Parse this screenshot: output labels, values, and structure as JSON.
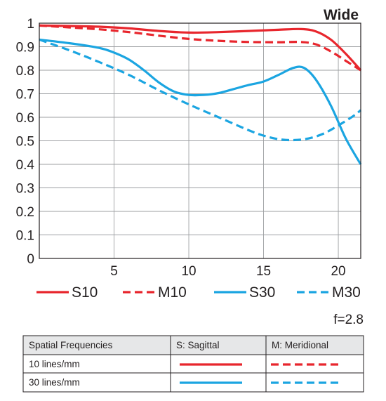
{
  "chart_data": {
    "type": "line",
    "title": "Wide",
    "xlabel": "",
    "ylabel": "",
    "xlim": [
      0,
      21.5
    ],
    "ylim": [
      0,
      1
    ],
    "x_ticks": [
      5,
      10,
      15,
      20
    ],
    "y_ticks": [
      0,
      0.1,
      0.2,
      0.3,
      0.4,
      0.5,
      0.6,
      0.7,
      0.8,
      0.9,
      1
    ],
    "y_tick_labels": [
      "0",
      "0.1",
      "0.2",
      "0.3",
      "0.4",
      "0.5",
      "0.6",
      "0.7",
      "0.8",
      "0.9",
      "1"
    ],
    "grid": true,
    "legend_position": "bottom",
    "series": [
      {
        "name": "S10",
        "color": "#e8262d",
        "dashed": false,
        "x": [
          0,
          2,
          4,
          6,
          8,
          10,
          12,
          14,
          16,
          17.5,
          18.5,
          19.5,
          20.5,
          21.5
        ],
        "y": [
          0.99,
          0.988,
          0.985,
          0.978,
          0.967,
          0.96,
          0.962,
          0.967,
          0.972,
          0.975,
          0.965,
          0.93,
          0.87,
          0.8
        ]
      },
      {
        "name": "M10",
        "color": "#e8262d",
        "dashed": true,
        "x": [
          0,
          2,
          4,
          6,
          8,
          10,
          12,
          14,
          16,
          17.5,
          18.5,
          19.5,
          20.5,
          21.5
        ],
        "y": [
          0.99,
          0.982,
          0.974,
          0.962,
          0.947,
          0.933,
          0.925,
          0.92,
          0.919,
          0.92,
          0.91,
          0.88,
          0.84,
          0.8
        ]
      },
      {
        "name": "S30",
        "color": "#1ba5e1",
        "dashed": false,
        "x": [
          0,
          2,
          4,
          5,
          6,
          7,
          8,
          9,
          10,
          11,
          12,
          13,
          14,
          15,
          16,
          17,
          17.7,
          18.5,
          19.5,
          20.5,
          21.5
        ],
        "y": [
          0.93,
          0.915,
          0.895,
          0.875,
          0.845,
          0.8,
          0.748,
          0.71,
          0.695,
          0.695,
          0.703,
          0.72,
          0.737,
          0.752,
          0.78,
          0.81,
          0.81,
          0.76,
          0.65,
          0.51,
          0.4
        ]
      },
      {
        "name": "M30",
        "color": "#1ba5e1",
        "dashed": true,
        "x": [
          0,
          2,
          4,
          6,
          8,
          10,
          12,
          14,
          15,
          16,
          17,
          18,
          19,
          20,
          21,
          21.5
        ],
        "y": [
          0.93,
          0.885,
          0.835,
          0.78,
          0.715,
          0.655,
          0.6,
          0.545,
          0.522,
          0.507,
          0.503,
          0.51,
          0.53,
          0.565,
          0.605,
          0.63
        ]
      }
    ],
    "legend": [
      "S10",
      "M10",
      "S30",
      "M30"
    ],
    "annotation": "f=2.8",
    "table": {
      "headers": [
        "Spatial Frequencies",
        "S: Sagittal",
        "M: Meridional"
      ],
      "rows": [
        {
          "label": "10 lines/mm",
          "color": "#e8262d"
        },
        {
          "label": "30 lines/mm",
          "color": "#1ba5e1"
        }
      ]
    }
  }
}
